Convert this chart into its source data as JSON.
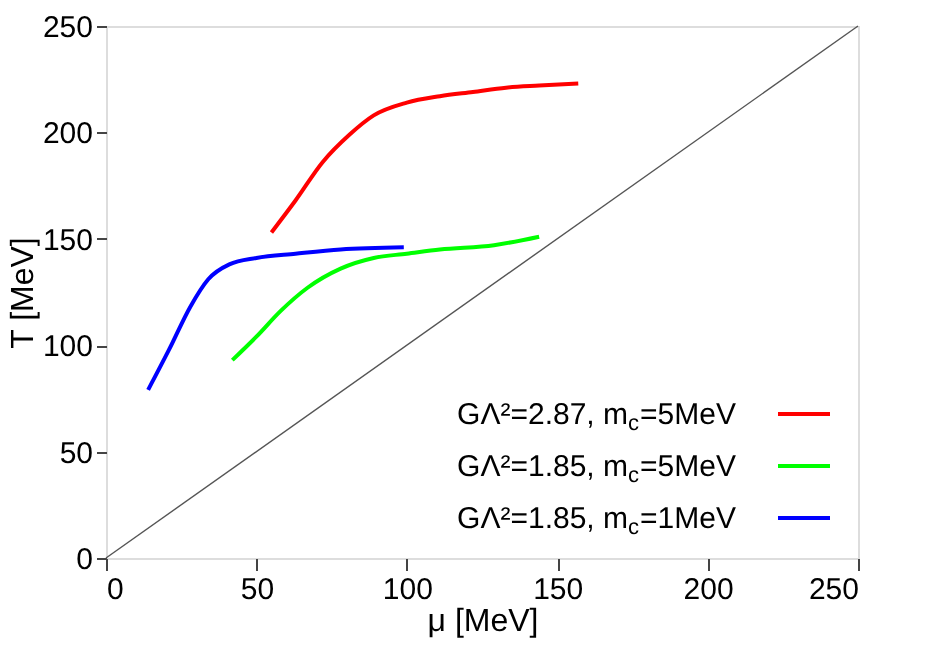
{
  "chart_data": {
    "type": "line",
    "xlabel": "μ [MeV]",
    "ylabel": "T [MeV]",
    "xlim": [
      0,
      250
    ],
    "ylim": [
      0,
      250
    ],
    "xticks": [
      0,
      50,
      100,
      150,
      200,
      250
    ],
    "yticks": [
      0,
      50,
      100,
      150,
      200,
      250
    ],
    "grid": false,
    "legend": "bottom right",
    "line_style": "solid",
    "marker": "none",
    "series": [
      {
        "name": "GΛ²=2.87, m$_{c}$=5MeV",
        "color": "#ff0000",
        "x": [
          55,
          63,
          72,
          81,
          89,
          100,
          111,
          122,
          133,
          144,
          157
        ],
        "values": [
          153,
          168,
          186,
          199,
          208,
          214,
          217,
          219,
          221,
          222,
          223
        ]
      },
      {
        "name": "GΛ²=1.85, m$_{c}$=5MeV",
        "color": "#00ff00",
        "x": [
          42,
          50,
          58,
          67,
          78,
          89,
          100,
          111,
          129,
          144
        ],
        "values": [
          93,
          104,
          116,
          127,
          136,
          141,
          143,
          145,
          147,
          151
        ]
      },
      {
        "name": "GΛ²=1.85, m$_{c}$=1MeV",
        "color": "#0000ff",
        "x": [
          14,
          21,
          28,
          34,
          41,
          50,
          63,
          78,
          99
        ],
        "values": [
          79,
          98,
          118,
          131,
          138,
          141,
          143,
          145,
          146
        ]
      },
      {
        "color": "#555555",
        "x": [
          0,
          250
        ],
        "values": [
          0,
          250
        ]
      }
    ]
  }
}
